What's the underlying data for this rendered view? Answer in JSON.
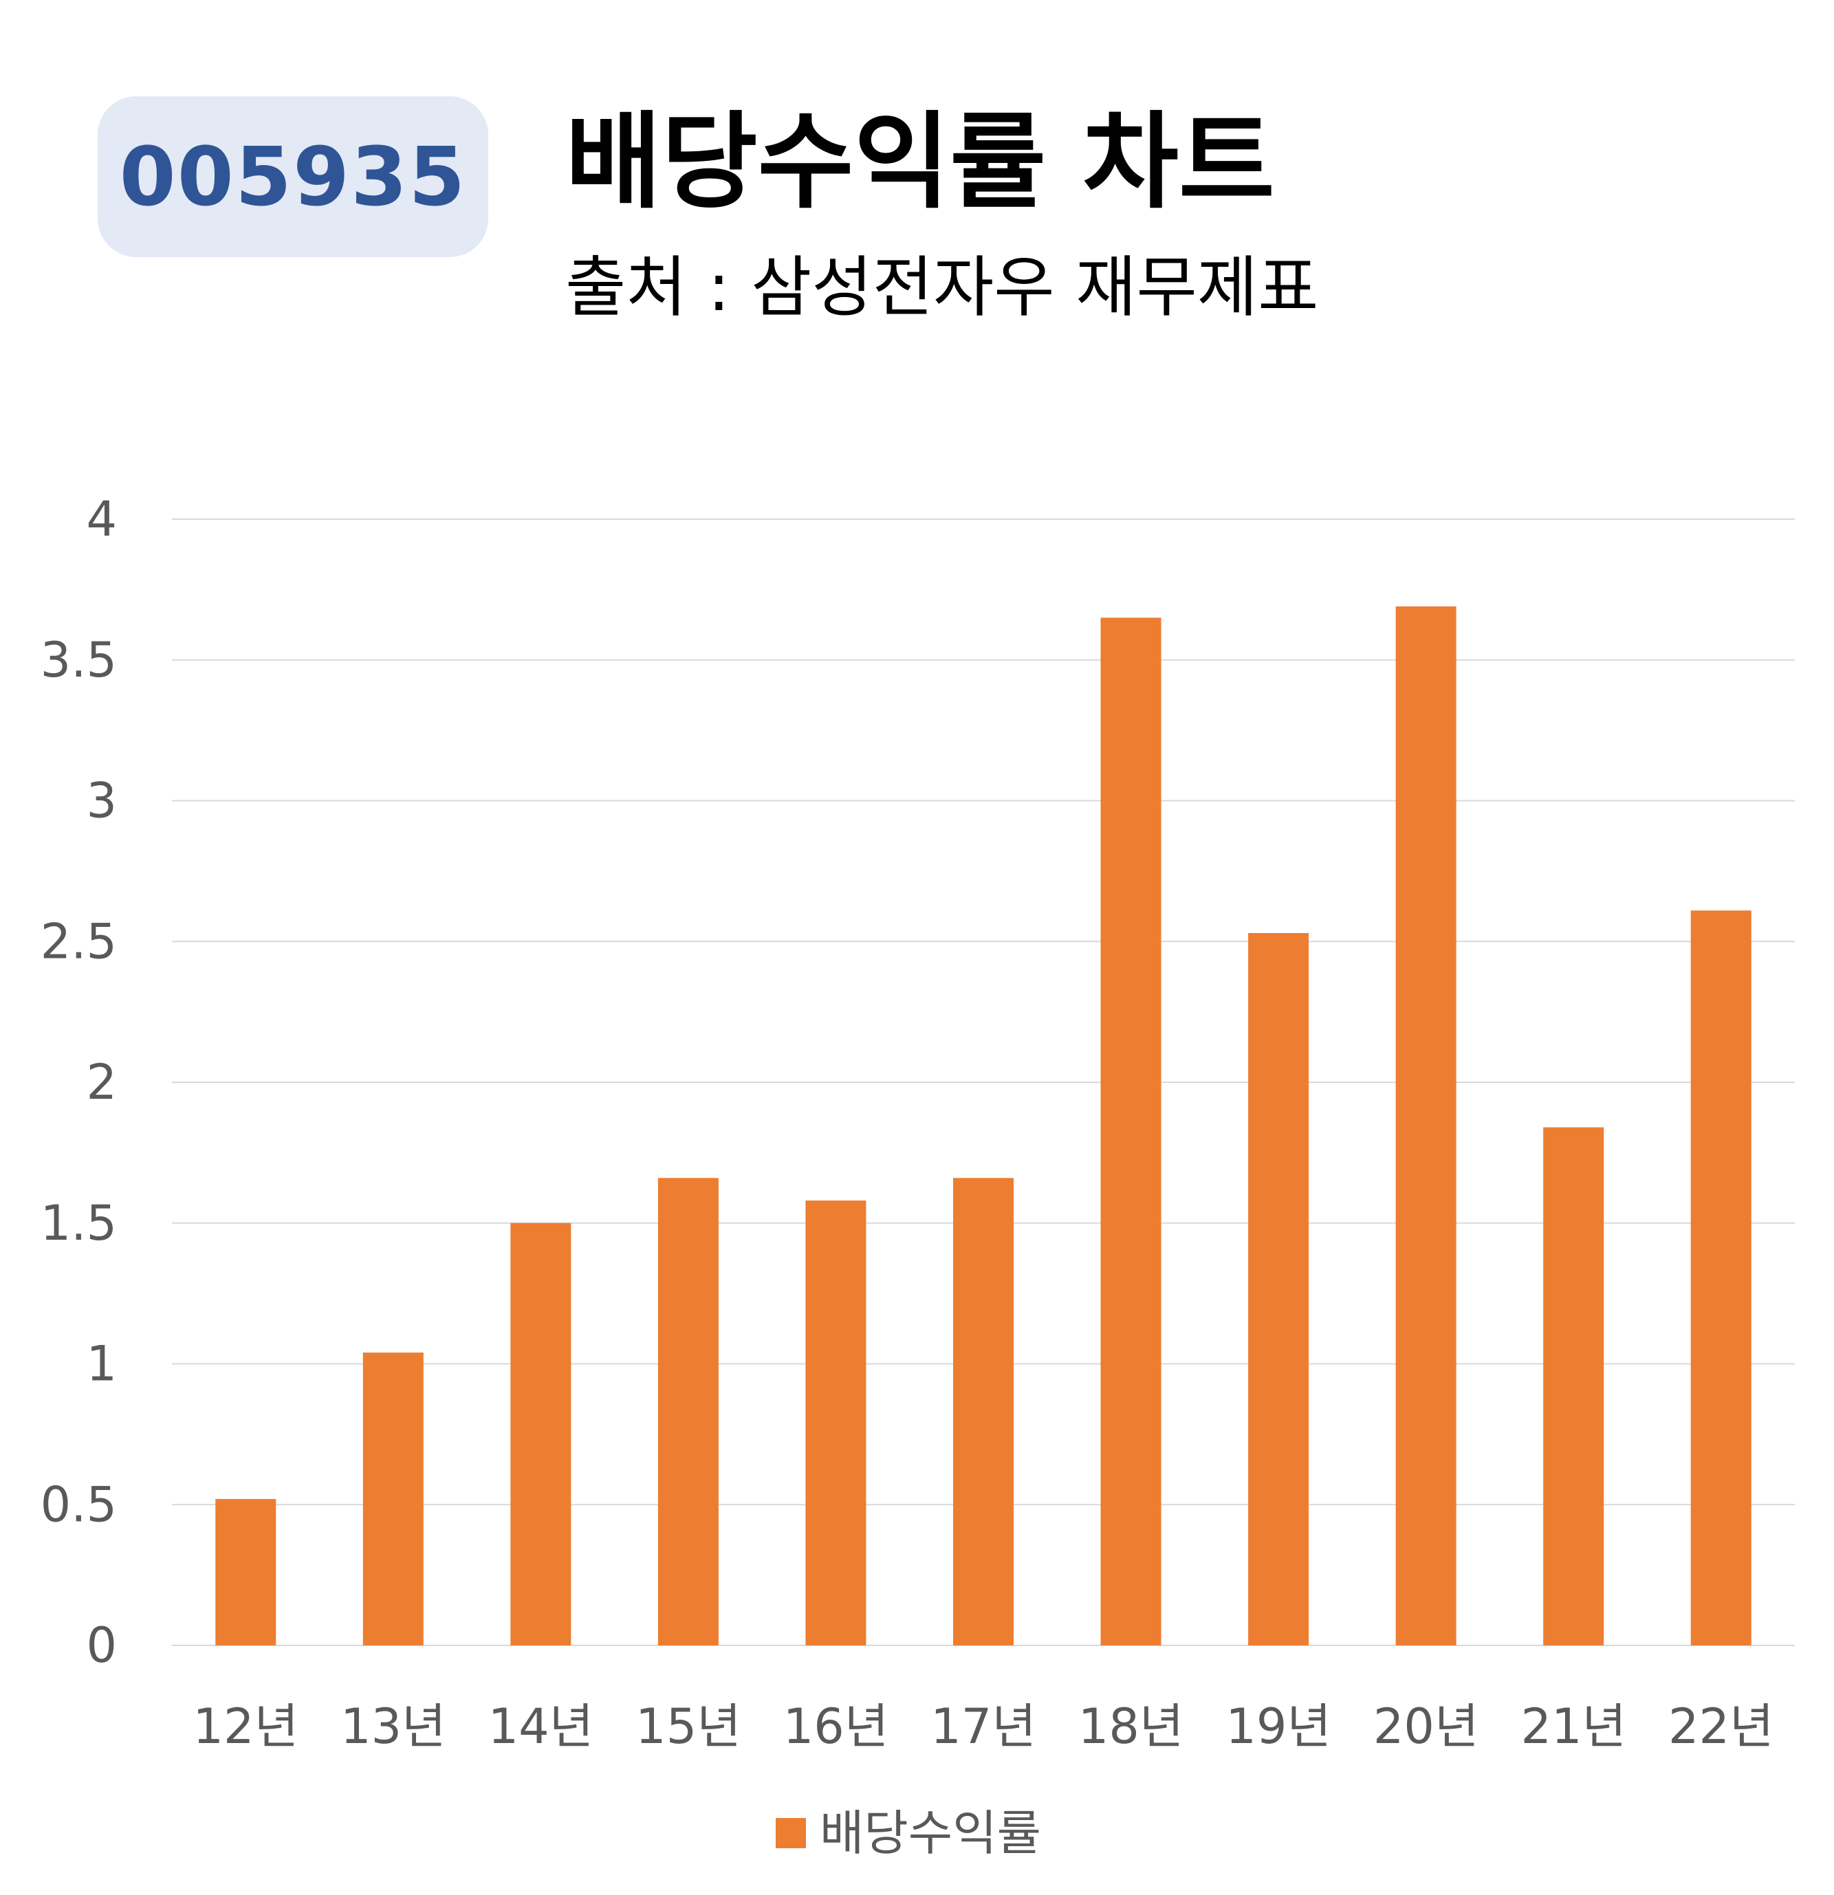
{
  "header": {
    "ticker": "005935",
    "title": "배당수익률 차트",
    "subtitle": "출처 : 삼성전자우 재무제표"
  },
  "colors": {
    "bar": "#ed7d31",
    "grid": "#d9d9d9",
    "badge_bg": "#e3e9f5",
    "badge_text": "#2f5597",
    "tick_text": "#595959"
  },
  "chart_data": {
    "type": "bar",
    "title": "배당수익률 차트",
    "subtitle": "출처 : 삼성전자우 재무제표",
    "xlabel": "",
    "ylabel": "",
    "categories": [
      "12년",
      "13년",
      "14년",
      "15년",
      "16년",
      "17년",
      "18년",
      "19년",
      "20년",
      "21년",
      "22년"
    ],
    "series": [
      {
        "name": "배당수익률",
        "values": [
          0.52,
          1.04,
          1.5,
          1.66,
          1.58,
          1.66,
          3.65,
          2.53,
          3.69,
          1.84,
          2.61
        ]
      }
    ],
    "ylim": [
      0,
      4
    ],
    "yticks": [
      0,
      0.5,
      1,
      1.5,
      2,
      2.5,
      3,
      3.5,
      4
    ],
    "ytick_labels": [
      "0",
      "0.5",
      "1",
      "1.5",
      "2",
      "2.5",
      "3",
      "3.5",
      "4"
    ],
    "grid": true,
    "legend": {
      "position": "bottom",
      "entries": [
        "배당수익률"
      ]
    }
  }
}
